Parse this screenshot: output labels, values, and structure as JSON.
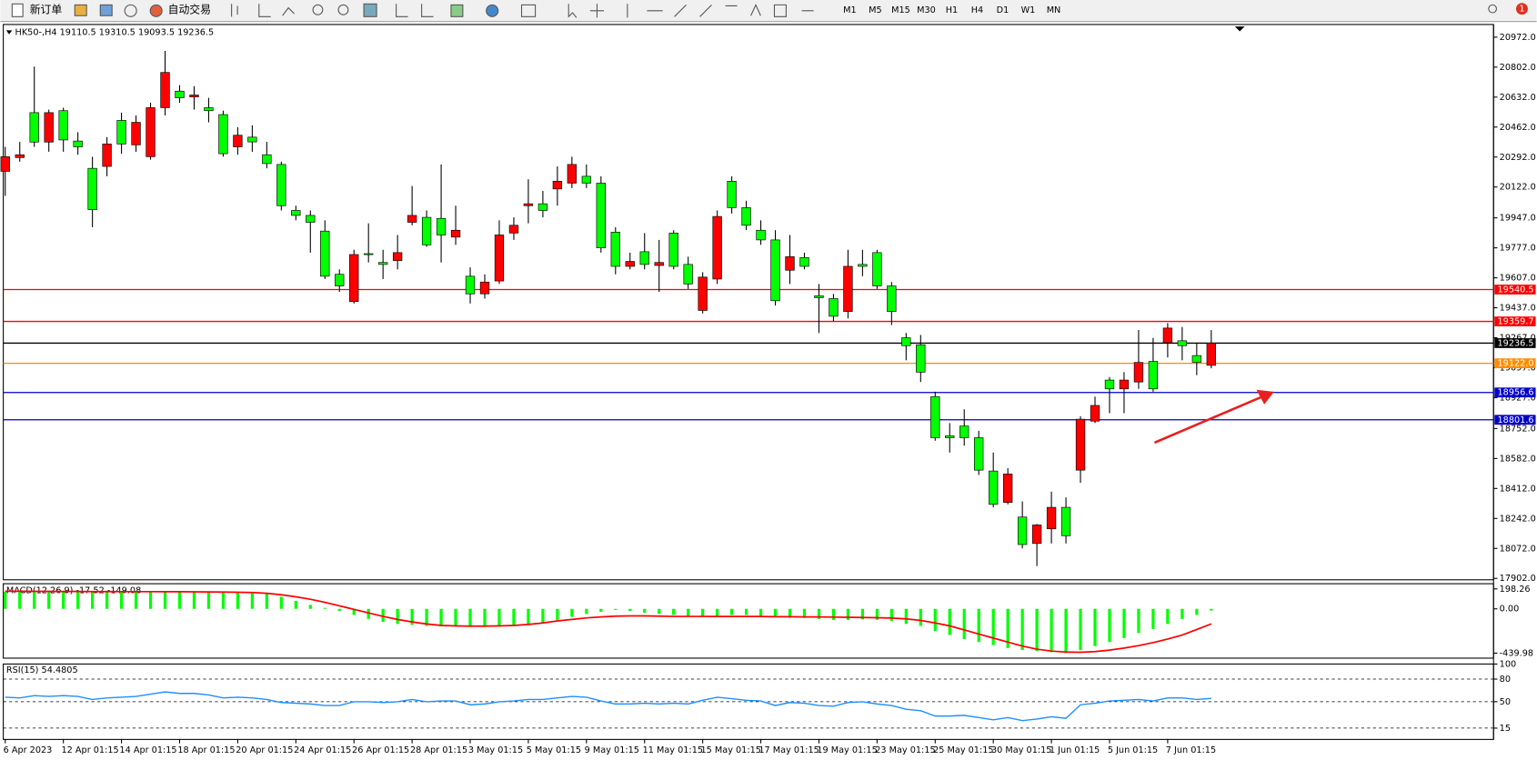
{
  "toolbar": {
    "buttons": [
      "新订单",
      "自动交易"
    ],
    "timeframes": [
      "M1",
      "M5",
      "M15",
      "M30",
      "H1",
      "H4",
      "D1",
      "W1",
      "MN"
    ],
    "notifications": 1
  },
  "chart_data": [
    {
      "type": "candlestick",
      "symbol": "HK50-,H4",
      "categories": [
        "6 Apr 2023",
        null,
        null,
        null,
        "12 Apr 01:15",
        null,
        null,
        null,
        "14 Apr 01:15",
        null,
        null,
        null,
        "18 Apr 01:15",
        null,
        null,
        null,
        "20 Apr 01:15",
        null,
        null,
        null,
        "24 Apr 01:15",
        null,
        null,
        null,
        "26 Apr 01:15",
        null,
        null,
        null,
        "28 Apr 01:15",
        null,
        null,
        null,
        "3 May 01:15",
        null,
        null,
        null,
        "5 May 01:15",
        null,
        null,
        null,
        "9 May 01:15",
        null,
        null,
        null,
        "11 May 01:15",
        null,
        null,
        null,
        "15 May 01:15",
        null,
        null,
        null,
        "17 May 01:15",
        null,
        null,
        null,
        "19 May 01:15",
        null,
        null,
        null,
        "23 May 01:15",
        null,
        null,
        null,
        "25 May 01:15",
        null,
        null,
        null,
        "30 May 01:15",
        null,
        null,
        null,
        "1 Jun 01:15",
        null,
        null,
        null,
        "5 Jun 01:15",
        null,
        null,
        null,
        "7 Jun 01:15",
        null,
        null,
        null
      ],
      "open": [
        20211,
        20289,
        20544,
        20377,
        20555,
        20383,
        20228,
        20239,
        20500,
        20361,
        20294,
        20572,
        20666,
        20633,
        20572,
        20533,
        20350,
        20405,
        20305,
        20250,
        19989,
        19961,
        19872,
        19627,
        19472,
        19744,
        19694,
        19705,
        19922,
        19950,
        19944,
        19838,
        19616,
        19516,
        19589,
        19861,
        20016,
        20027,
        20111,
        20144,
        20183,
        20144,
        19866,
        19672,
        19755,
        19677,
        19861,
        19683,
        19422,
        19600,
        20155,
        20005,
        19877,
        19822,
        19650,
        19722,
        19505,
        19489,
        19416,
        19683,
        19750,
        19561,
        19267,
        19227,
        18933,
        18711,
        18766,
        18700,
        18511,
        18333,
        18250,
        18100,
        18183,
        18305,
        18516,
        18794,
        19027,
        18977,
        19016,
        19133,
        19239,
        19250,
        19166,
        19110.5
      ],
      "high": [
        20350,
        20378,
        20805,
        20561,
        20572,
        20433,
        20294,
        20405,
        20544,
        20528,
        20600,
        20894,
        20700,
        20694,
        20628,
        20555,
        20461,
        20472,
        20378,
        20266,
        20016,
        19989,
        19933,
        19655,
        19766,
        19916,
        19766,
        19850,
        20128,
        19989,
        20250,
        20016,
        19666,
        19627,
        19933,
        19950,
        20166,
        20100,
        20239,
        20294,
        20250,
        20183,
        19894,
        19750,
        19861,
        19822,
        19877,
        19727,
        19639,
        19989,
        20183,
        20044,
        19933,
        19877,
        19850,
        19750,
        19572,
        19516,
        19766,
        19766,
        19766,
        19583,
        19294,
        19283,
        18961,
        18783,
        18861,
        18739,
        18616,
        18527,
        18339,
        18211,
        18394,
        18361,
        18822,
        18933,
        19044,
        19072,
        19311,
        19266,
        19350,
        19328,
        19239,
        19310.5
      ],
      "low": [
        20072,
        20266,
        20350,
        20322,
        20322,
        20305,
        19894,
        20183,
        20311,
        20322,
        20277,
        20528,
        20600,
        20561,
        20489,
        20294,
        20305,
        20322,
        20228,
        19989,
        19933,
        19750,
        19600,
        19527,
        19461,
        19694,
        19600,
        19655,
        19905,
        19783,
        19694,
        19794,
        19461,
        19489,
        19572,
        19822,
        19916,
        19950,
        20016,
        20116,
        20116,
        19750,
        19627,
        19655,
        19655,
        19527,
        19655,
        19544,
        19405,
        19572,
        19972,
        19878,
        19794,
        19450,
        19572,
        19655,
        19294,
        19361,
        19377,
        19616,
        19544,
        19339,
        19139,
        19016,
        18683,
        18616,
        18655,
        18489,
        18305,
        18322,
        18072,
        17972,
        18100,
        18100,
        18444,
        18783,
        18839,
        18839,
        18977,
        18961,
        19155,
        19139,
        19055,
        19093.5
      ],
      "close": [
        20294,
        20305,
        20377,
        20544,
        20389,
        20350,
        19994,
        20366,
        20366,
        20489,
        20572,
        20772,
        20628,
        20644,
        20555,
        20311,
        20416,
        20378,
        20255,
        20016,
        19961,
        19922,
        19616,
        19561,
        19739,
        19739,
        19683,
        19750,
        19961,
        19794,
        19850,
        19877,
        19516,
        19583,
        19850,
        19905,
        20027,
        19989,
        20155,
        20250,
        20144,
        19777,
        19672,
        19700,
        19683,
        19694,
        19672,
        19572,
        19611,
        19955,
        20005,
        19905,
        19822,
        19477,
        19727,
        19672,
        19494,
        19389,
        19672,
        19672,
        19561,
        19416,
        19222,
        19072,
        18700,
        18700,
        18700,
        18516,
        18322,
        18494,
        18094,
        18205,
        18305,
        18144,
        18805,
        18883,
        18977,
        19027,
        19127,
        18977,
        19322,
        19222,
        19128,
        19236.5
      ],
      "up_color": "#ff0000",
      "down_color": "#00ff00",
      "ylim": [
        17894,
        21044
      ],
      "yticks": [
        {
          "value": 20972,
          "label": "20972.0"
        },
        {
          "value": 20802,
          "label": "20802.0"
        },
        {
          "value": 20632,
          "label": "20632.0"
        },
        {
          "value": 20462,
          "label": "20462.0"
        },
        {
          "value": 20292,
          "label": "20292.0"
        },
        {
          "value": 20122,
          "label": "20122.0"
        },
        {
          "value": 19947,
          "label": "19947.0"
        },
        {
          "value": 19777,
          "label": "19777.0"
        },
        {
          "value": 19607,
          "label": "19607.0"
        },
        {
          "value": 19437,
          "label": "19437.0"
        },
        {
          "value": 19267,
          "label": "19267.0"
        },
        {
          "value": 19097,
          "label": "19097.0"
        },
        {
          "value": 18927,
          "label": "18927.0"
        },
        {
          "value": 18752,
          "label": "18752.0"
        },
        {
          "value": 18582,
          "label": "18582.0"
        },
        {
          "value": 18412,
          "label": "18412.0"
        },
        {
          "value": 18242,
          "label": "18242.0"
        },
        {
          "value": 18072,
          "label": "18072.0"
        },
        {
          "value": 17902,
          "label": "17902.0"
        }
      ],
      "levels": [
        {
          "value": 19540.5,
          "color": "#ff0000"
        },
        {
          "value": 19359.7,
          "color": "#ff0000"
        },
        {
          "value": 19236.5,
          "color": "#000000"
        },
        {
          "value": 19122,
          "label": "19122.0",
          "color": "#ff8c00"
        },
        {
          "value": 18956.6,
          "color": "#0000c8"
        },
        {
          "value": 18801.6,
          "color": "#0000c8"
        }
      ]
    },
    {
      "type": "macd",
      "label": "MACD(12,26,9)",
      "histogram": {
        "color": "#00ff00",
        "values": [
          170,
          170,
          172,
          175,
          176,
          175,
          172,
          170,
          168,
          168,
          170,
          172,
          174,
          175,
          174,
          172,
          168,
          160,
          150,
          120,
          80,
          40,
          10,
          -20,
          -60,
          -100,
          -130,
          -150,
          -160,
          -170,
          -175,
          -175,
          -180,
          -180,
          -175,
          -170,
          -160,
          -140,
          -110,
          -80,
          -50,
          -30,
          -10,
          -20,
          -40,
          -50,
          -60,
          -70,
          -80,
          -75,
          -60,
          -60,
          -70,
          -80,
          -90,
          -90,
          -100,
          -110,
          -110,
          -105,
          -110,
          -120,
          -150,
          -170,
          -220,
          -260,
          -300,
          -330,
          -360,
          -390,
          -410,
          -420,
          -430,
          -440,
          -410,
          -370,
          -330,
          -290,
          -240,
          -200,
          -150,
          -100,
          -60,
          -17.52
        ]
      },
      "signal": {
        "color": "#ff0000",
        "values": [
          175,
          175,
          174,
          174,
          173,
          173,
          172,
          172,
          171,
          171,
          171,
          170,
          170,
          169,
          168,
          167,
          165,
          162,
          155,
          140,
          120,
          95,
          65,
          30,
          -5,
          -40,
          -75,
          -105,
          -130,
          -150,
          -165,
          -170,
          -172,
          -172,
          -170,
          -165,
          -155,
          -140,
          -120,
          -105,
          -90,
          -80,
          -72,
          -70,
          -70,
          -72,
          -75,
          -75,
          -75,
          -76,
          -76,
          -76,
          -76,
          -78,
          -78,
          -80,
          -80,
          -82,
          -84,
          -86,
          -88,
          -92,
          -100,
          -115,
          -140,
          -170,
          -210,
          -250,
          -290,
          -330,
          -370,
          -400,
          -420,
          -430,
          -432,
          -425,
          -410,
          -390,
          -365,
          -335,
          -300,
          -260,
          -205,
          -149.08
        ]
      },
      "ylim": [
        -490,
        250
      ],
      "yticks": [
        198.26,
        {
          "value": 0,
          "label": "0.00"
        },
        -439.98
      ]
    },
    {
      "type": "line",
      "label": "RSI(15)",
      "color": "#1e90ff",
      "values": [
        56,
        55,
        58,
        57,
        58,
        57,
        53,
        55,
        56,
        57,
        60,
        63,
        61,
        61,
        59,
        55,
        56,
        55,
        53,
        49,
        48,
        47,
        45,
        45,
        50,
        50,
        49,
        50,
        53,
        50,
        51,
        51,
        46,
        47,
        50,
        51,
        53,
        53,
        55,
        57,
        56,
        51,
        47,
        47,
        48,
        47,
        48,
        47,
        52,
        56,
        54,
        52,
        51,
        45,
        49,
        48,
        45,
        44,
        49,
        50,
        47,
        45,
        40,
        38,
        31,
        31,
        32,
        29,
        26,
        29,
        25,
        27,
        30,
        28,
        46,
        48,
        51,
        52,
        53,
        51,
        55,
        55,
        53,
        54.4805
      ],
      "ylim": [
        0,
        100
      ],
      "yticks": [
        100,
        80,
        50,
        15
      ]
    }
  ]
}
